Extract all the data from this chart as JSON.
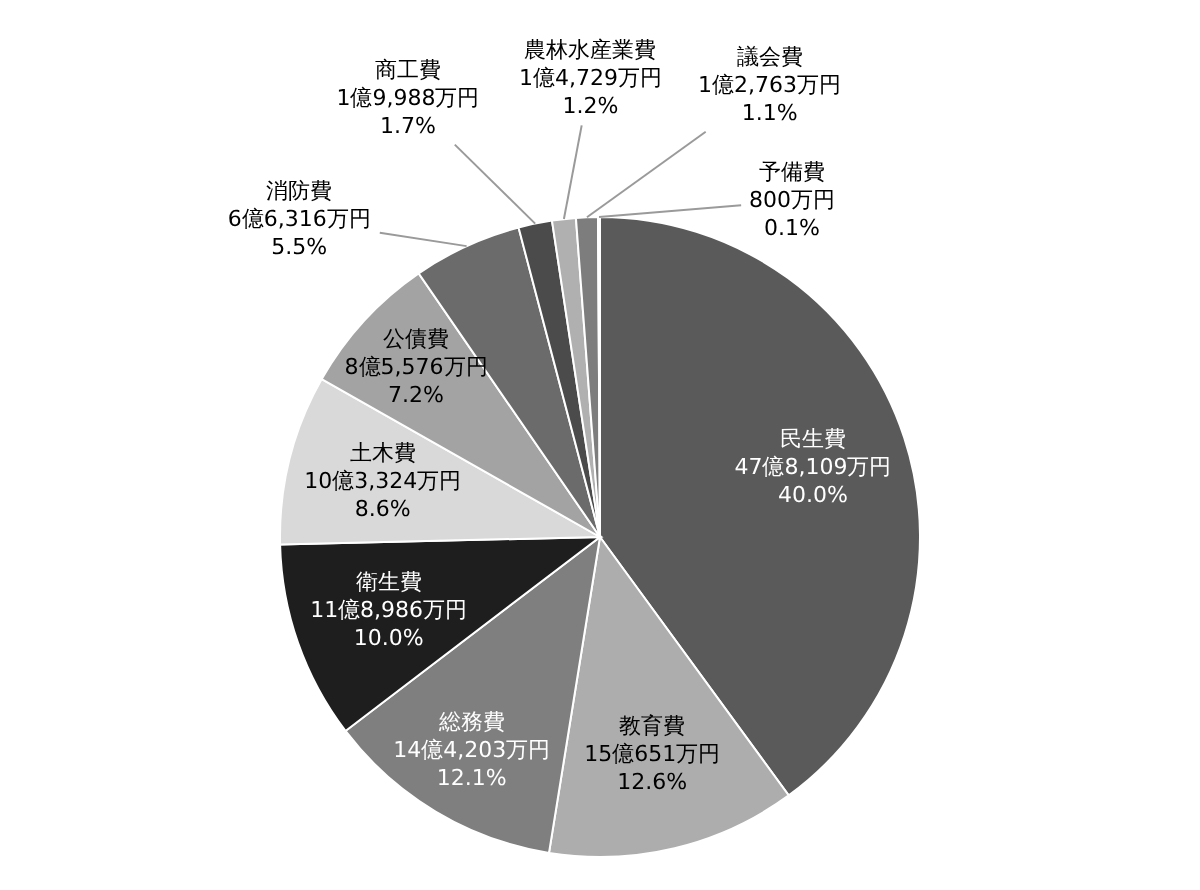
{
  "chart_data": {
    "type": "pie",
    "categories": [
      "民生費",
      "教育費",
      "総務費",
      "衛生費",
      "土木費",
      "公債費",
      "消防費",
      "商工費",
      "農林水産業費",
      "議会費",
      "予備費"
    ],
    "values": [
      40.0,
      12.6,
      12.1,
      10.0,
      8.6,
      7.2,
      5.5,
      1.7,
      1.2,
      1.1,
      0.1
    ],
    "colors": [
      "#5a5a5a",
      "#adadad",
      "#7f7f7f",
      "#1e1e1e",
      "#d9d9d9",
      "#a3a3a3",
      "#6b6b6b",
      "#4b4b4b",
      "#b0b0b0",
      "#7d7d7d",
      "#505050"
    ],
    "value_labels": [
      "47億8,109万円\n40.0%",
      "15億651万円\n12.6%",
      "14億4,203万円\n12.1%",
      "11億8,986万円\n10.0%",
      "10億3,324万円\n8.6%",
      "8億5,576万円\n7.2%",
      "6億6,316万円\n5.5%",
      "1億9,988万円\n1.7%",
      "1億4,729万円\n1.2%",
      "1億2,763万円\n1.1%",
      "800万円\n0.1%"
    ]
  }
}
